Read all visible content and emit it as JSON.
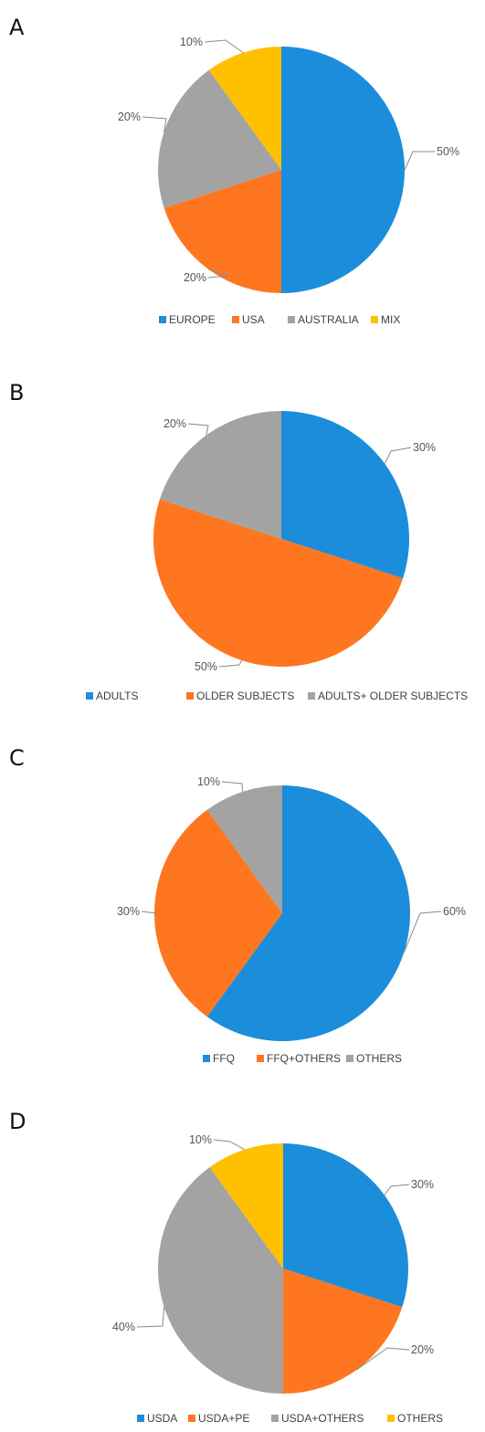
{
  "chart_data": [
    {
      "type": "pie",
      "panel_label": "A",
      "categories": [
        "EUROPE",
        "USA",
        "AUSTRALIA",
        "MIX"
      ],
      "values": [
        50,
        20,
        20,
        10
      ],
      "value_labels": [
        "50%",
        "20%",
        "20%",
        "10%"
      ],
      "legend": "bottom",
      "colors": [
        "#1c8ddb",
        "#ff7620",
        "#a3a3a3",
        "#ffc000"
      ]
    },
    {
      "type": "pie",
      "panel_label": "B",
      "categories": [
        "ADULTS",
        "OLDER SUBJECTS",
        "ADULTS+ OLDER SUBJECTS"
      ],
      "values": [
        30,
        50,
        20
      ],
      "value_labels": [
        "30%",
        "50%",
        "20%"
      ],
      "legend": "bottom",
      "colors": [
        "#1c8ddb",
        "#ff7620",
        "#a3a3a3"
      ]
    },
    {
      "type": "pie",
      "panel_label": "C",
      "categories": [
        "FFQ",
        "FFQ+OTHERS",
        "OTHERS"
      ],
      "values": [
        60,
        30,
        10
      ],
      "value_labels": [
        "60%",
        "30%",
        "10%"
      ],
      "legend": "bottom",
      "colors": [
        "#1c8ddb",
        "#ff7620",
        "#a3a3a3"
      ]
    },
    {
      "type": "pie",
      "panel_label": "D",
      "categories": [
        "USDA",
        "USDA+PE",
        "USDA+OTHERS",
        "OTHERS"
      ],
      "values": [
        30,
        20,
        40,
        10
      ],
      "value_labels": [
        "30%",
        "20%",
        "40%",
        "10%"
      ],
      "legend": "bottom",
      "colors": [
        "#1c8ddb",
        "#ff7620",
        "#a3a3a3",
        "#ffc000"
      ]
    }
  ]
}
